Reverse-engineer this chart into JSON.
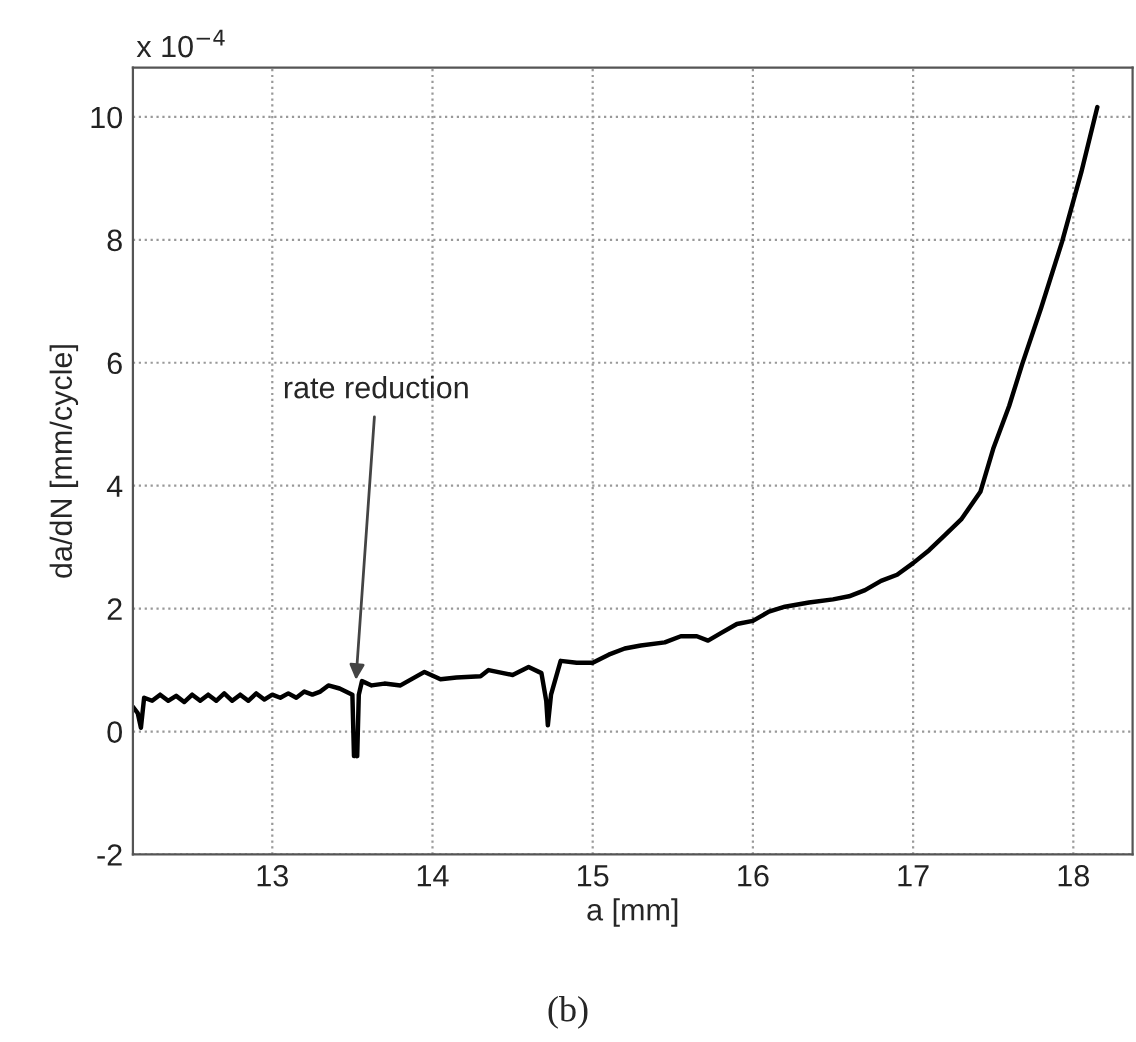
{
  "chart_data": {
    "type": "line",
    "xlabel": "a [mm]",
    "ylabel": "da/dN [mm/cycle]",
    "xlim": [
      12.13,
      18.37
    ],
    "ylim": [
      -2,
      10.8
    ],
    "xticks": [
      13,
      14,
      15,
      16,
      17,
      18
    ],
    "yticks": [
      -2,
      0,
      2,
      4,
      6,
      8,
      10
    ],
    "grid": true,
    "line_style": "solid",
    "marker": "none",
    "series": [
      {
        "color": "#000000",
        "x": [
          12.13,
          12.16,
          12.18,
          12.2,
          12.25,
          12.3,
          12.35,
          12.4,
          12.45,
          12.5,
          12.55,
          12.6,
          12.65,
          12.7,
          12.75,
          12.8,
          12.85,
          12.9,
          12.95,
          13.0,
          13.05,
          13.1,
          13.15,
          13.2,
          13.25,
          13.3,
          13.35,
          13.42,
          13.5,
          13.51,
          13.52,
          13.53,
          13.54,
          13.56,
          13.62,
          13.7,
          13.8,
          13.95,
          14.05,
          14.15,
          14.3,
          14.35,
          14.5,
          14.6,
          14.68,
          14.71,
          14.72,
          14.74,
          14.8,
          14.9,
          15.0,
          15.1,
          15.2,
          15.3,
          15.45,
          15.55,
          15.65,
          15.72,
          15.8,
          15.9,
          16.0,
          16.1,
          16.2,
          16.35,
          16.5,
          16.6,
          16.7,
          16.8,
          16.9,
          17.0,
          17.1,
          17.2,
          17.3,
          17.38,
          17.42,
          17.5,
          17.6,
          17.68,
          17.8,
          17.93,
          18.05,
          18.15
        ],
        "values": [
          0.4,
          0.3,
          0.06,
          0.55,
          0.5,
          0.6,
          0.5,
          0.58,
          0.48,
          0.6,
          0.5,
          0.6,
          0.5,
          0.62,
          0.5,
          0.6,
          0.5,
          0.62,
          0.52,
          0.6,
          0.55,
          0.62,
          0.55,
          0.65,
          0.6,
          0.65,
          0.75,
          0.7,
          0.6,
          -0.4,
          -0.35,
          -0.4,
          0.6,
          0.82,
          0.75,
          0.78,
          0.75,
          0.97,
          0.85,
          0.88,
          0.9,
          1.0,
          0.92,
          1.05,
          0.95,
          0.5,
          0.1,
          0.6,
          1.15,
          1.12,
          1.12,
          1.25,
          1.35,
          1.4,
          1.45,
          1.55,
          1.55,
          1.48,
          1.6,
          1.75,
          1.8,
          1.95,
          2.03,
          2.1,
          2.15,
          2.2,
          2.3,
          2.45,
          2.55,
          2.74,
          2.95,
          3.2,
          3.45,
          3.75,
          3.9,
          4.6,
          5.3,
          5.97,
          6.9,
          7.97,
          9.1,
          10.16
        ]
      }
    ],
    "annotations": [
      {
        "text": "rate reduction",
        "x": 13.52,
        "y": 0.75
      },
      "x 10$^{−4}$",
      "(b)"
    ]
  }
}
